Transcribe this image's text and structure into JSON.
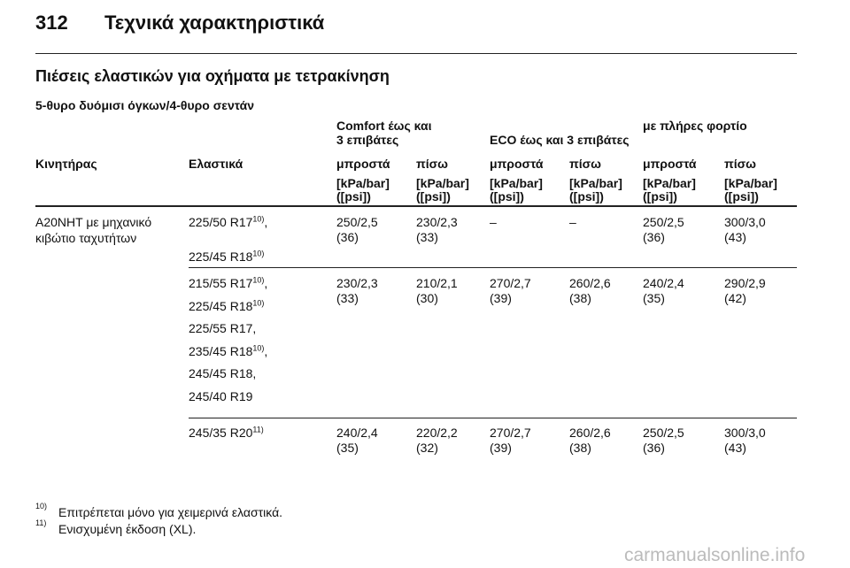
{
  "header": {
    "page": "312",
    "title": "Τεχνικά χαρακτηριστικά"
  },
  "section_title": "Πιέσεις ελαστικών για οχήματα με τετρακίνηση",
  "subtitle": "5-θυρο δυόμισι όγκων/4-θυρο σεντάν",
  "table": {
    "group_headers": [
      [
        "Comfort έως και",
        "3 επιβάτες"
      ],
      [
        "ECO έως και 3 επιβάτες"
      ],
      [
        "με πλήρες φορτίο"
      ]
    ],
    "column_headers": [
      "Κινητήρας",
      "Ελαστικά",
      "μπροστά",
      "πίσω",
      "μπροστά",
      "πίσω",
      "μπροστά",
      "πίσω"
    ],
    "units": [
      [
        "[kPa/bar]",
        "([psi])"
      ],
      [
        "[kPa/bar]",
        "([psi])"
      ],
      [
        "[kPa/bar]",
        "([psi])"
      ],
      [
        "[kPa/bar]",
        "([psi])"
      ],
      [
        "[kPa/bar]",
        "([psi])"
      ],
      [
        "[kPa/bar]",
        "([psi])"
      ]
    ],
    "engine": [
      "A20NHT με μηχανικό",
      "κιβώτιο ταχυτήτων"
    ],
    "groups": [
      {
        "tires": [
          {
            "text": "225/50 R17",
            "note": "10)",
            "tail": ","
          },
          {
            "text": "225/45 R18",
            "note": "10)"
          }
        ],
        "values": [
          [
            "250/2,5",
            "(36)"
          ],
          [
            "230/2,3",
            "(33)"
          ],
          [
            "–"
          ],
          [
            "–"
          ],
          [
            "250/2,5",
            "(36)"
          ],
          [
            "300/3,0",
            "(43)"
          ]
        ]
      },
      {
        "tires": [
          {
            "text": "215/55 R17",
            "note": "10)",
            "tail": ","
          },
          {
            "text": "225/45 R18",
            "note": "10)"
          },
          {
            "text": "225/55 R17,"
          },
          {
            "text": "235/45 R18",
            "note": "10)",
            "tail": ","
          },
          {
            "text": "245/45 R18,"
          },
          {
            "text": "245/40 R19"
          }
        ],
        "values": [
          [
            "230/2,3",
            "(33)"
          ],
          [
            "210/2,1",
            "(30)"
          ],
          [
            "270/2,7",
            "(39)"
          ],
          [
            "260/2,6",
            "(38)"
          ],
          [
            "240/2,4",
            "(35)"
          ],
          [
            "290/2,9",
            "(42)"
          ]
        ]
      },
      {
        "tires": [
          {
            "text": "245/35 R20",
            "note": "11)"
          }
        ],
        "values": [
          [
            "240/2,4",
            "(35)"
          ],
          [
            "220/2,2",
            "(32)"
          ],
          [
            "270/2,7",
            "(39)"
          ],
          [
            "260/2,6",
            "(38)"
          ],
          [
            "250/2,5",
            "(36)"
          ],
          [
            "300/3,0",
            "(43)"
          ]
        ]
      }
    ]
  },
  "footnotes": [
    {
      "mark": "10)",
      "text": "Επιτρέπεται μόνο για χειμερινά ελαστικά."
    },
    {
      "mark": "11)",
      "text": "Ενισχυμένη έκδοση (XL)."
    }
  ],
  "watermark": "carmanualsonline.info"
}
